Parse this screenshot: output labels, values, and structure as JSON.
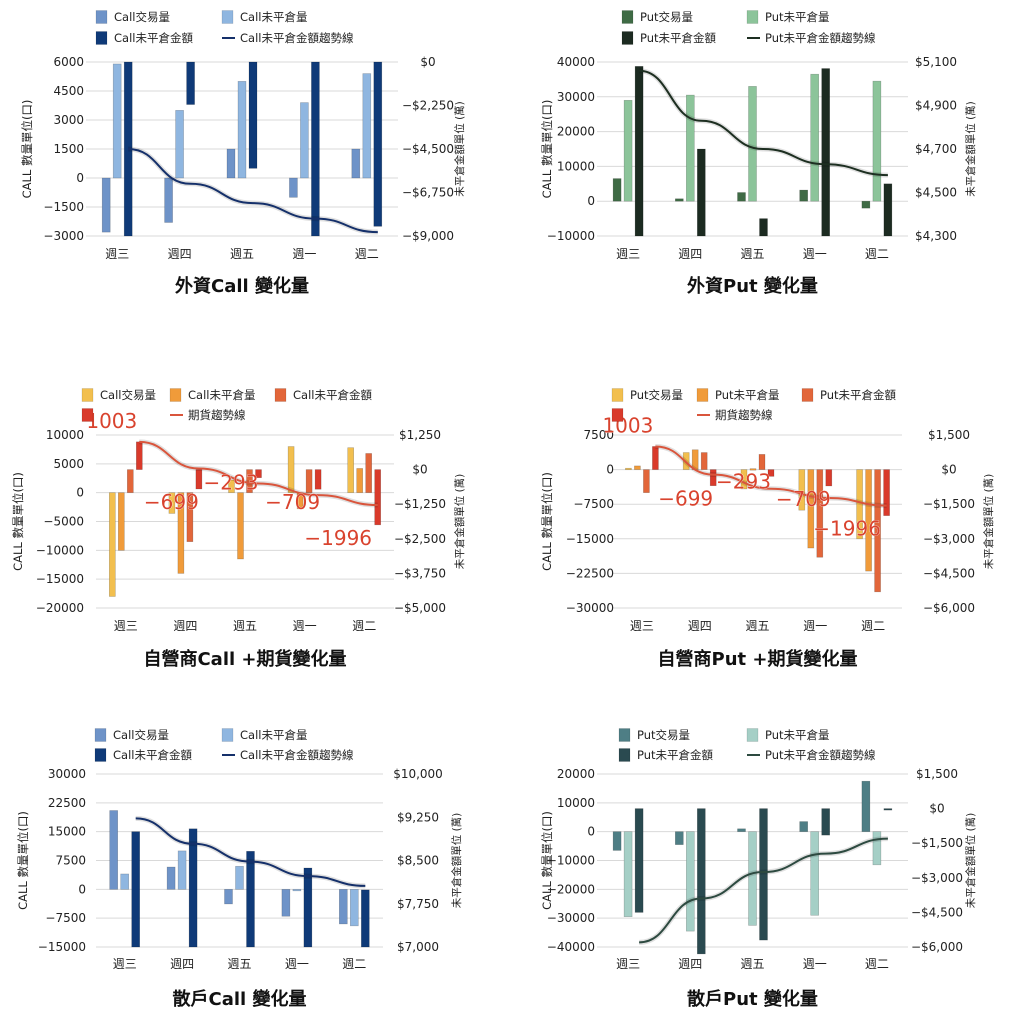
{
  "chart_data": [
    {
      "type": "bar",
      "title": "外資Call 變化量",
      "categories": [
        "週三",
        "週四",
        "週五",
        "週一",
        "週二"
      ],
      "ylabel": "CALL 數量單位(口)",
      "y2label": "未平倉金額單位 (萬)",
      "ylim": [
        -3000,
        6000
      ],
      "yticks": [
        6000,
        4500,
        3000,
        1500,
        0,
        -1500,
        -3000
      ],
      "ytick_labels": [
        "6000",
        "4500",
        "3000",
        "1500",
        "0",
        "−1500",
        "−3000"
      ],
      "y2lim": [
        -9000,
        0
      ],
      "y2ticks": [
        0,
        -2250,
        -4500,
        -6750,
        -9000
      ],
      "y2tick_labels": [
        "$0",
        "−$2,250",
        "−$4,500",
        "−$6,750",
        "−$9,000"
      ],
      "legend": [
        "Call交易量",
        "Call未平倉量",
        "Call未平倉金額",
        "Call未平倉金額趨勢線"
      ],
      "grid": true,
      "series": [
        {
          "name": "Call交易量",
          "color": "#6e93c8",
          "values": [
            -2800,
            -2300,
            1500,
            -1000,
            1500
          ]
        },
        {
          "name": "Call未平倉量",
          "color": "#8fb6e0",
          "values": [
            5900,
            3500,
            5000,
            3900,
            5400
          ]
        },
        {
          "name": "Call未平倉金額",
          "color": "#0f3a78",
          "axis": "right",
          "values": [
            -9000,
            -2200,
            -5500,
            -9000,
            -8500
          ]
        }
      ],
      "trend": {
        "name": "Call未平倉金額趨勢線",
        "color": "#15306a",
        "values": [
          -4500,
          -6300,
          -7300,
          -8100,
          -8800
        ]
      }
    },
    {
      "type": "bar",
      "title": "外資Put 變化量",
      "categories": [
        "週三",
        "週四",
        "週五",
        "週一",
        "週二"
      ],
      "ylabel": "CALL 數量單位(口)",
      "y2label": "未平倉金額單位 (萬)",
      "ylim": [
        -10000,
        40000
      ],
      "yticks": [
        40000,
        30000,
        20000,
        10000,
        0,
        -10000
      ],
      "ytick_labels": [
        "40000",
        "30000",
        "20000",
        "10000",
        "0",
        "−10000"
      ],
      "y2lim": [
        4300,
        5100
      ],
      "y2ticks": [
        5100,
        4900,
        4700,
        4500,
        4300
      ],
      "y2tick_labels": [
        "$5,100",
        "$4,900",
        "$4,700",
        "$4,500",
        "$4,300"
      ],
      "legend": [
        "Put交易量",
        "Put未平倉量",
        "Put未平倉金額",
        "Put未平倉金額趨勢線"
      ],
      "grid": true,
      "series": [
        {
          "name": "Put交易量",
          "color": "#3f6b45",
          "values": [
            6500,
            700,
            2500,
            3200,
            -2000
          ]
        },
        {
          "name": "Put未平倉量",
          "color": "#8cc49a",
          "values": [
            29000,
            30500,
            33000,
            36500,
            34500
          ]
        },
        {
          "name": "Put未平倉金額",
          "color": "#1c2b21",
          "axis": "right",
          "values": [
            5080,
            4700,
            4380,
            5070,
            4540
          ]
        }
      ],
      "trend": {
        "name": "Put未平倉金額趨勢線",
        "color": "#1d2f21",
        "values": [
          5060,
          4830,
          4700,
          4630,
          4580
        ]
      }
    },
    {
      "type": "bar",
      "title": "自營商Call +期貨變化量",
      "categories": [
        "週三",
        "週四",
        "週五",
        "週一",
        "週二"
      ],
      "ylabel": "CALL 數量單位(口)",
      "y2label": "未平倉金額單位 (萬)",
      "ylim": [
        -20000,
        10000
      ],
      "yticks": [
        10000,
        5000,
        0,
        -5000,
        -10000,
        -15000,
        -20000
      ],
      "ytick_labels": [
        "10000",
        "5000",
        "0",
        "−5000",
        "−10000",
        "−15000",
        "−20000"
      ],
      "y2lim": [
        -5000,
        1250
      ],
      "y2ticks": [
        1250,
        0,
        -1250,
        -2500,
        -3750,
        -5000
      ],
      "y2tick_labels": [
        "$1,250",
        "$0",
        "−$1,250",
        "−$2,500",
        "−$3,750",
        "−$5,000"
      ],
      "legend": [
        "Call交易量",
        "Call未平倉量",
        "Call未平倉金額",
        "",
        "期貨趨勢線"
      ],
      "grid": true,
      "series": [
        {
          "name": "Call交易量",
          "color": "#f2bf4e",
          "values": [
            -18000,
            -3600,
            2200,
            8000,
            7800
          ]
        },
        {
          "name": "Call未平倉量",
          "color": "#f09b3a",
          "values": [
            -10000,
            -14000,
            -11500,
            -2800,
            4200
          ]
        },
        {
          "name": "Call未平倉金額",
          "color": "#e2663a",
          "values": [
            4000,
            -8500,
            4000,
            4000,
            6800
          ]
        },
        {
          "name": "",
          "color": "#d93a2b",
          "axis": "right",
          "values": [
            1003,
            -699,
            -293,
            -709,
            -1996
          ]
        }
      ],
      "trend": {
        "name": "期貨趨勢線",
        "color": "#d9553c",
        "values": [
          1000,
          40,
          -500,
          -920,
          -1280
        ]
      },
      "annotations": [
        "1003",
        "−699",
        "−293",
        "−709",
        "−1996"
      ]
    },
    {
      "type": "bar",
      "title": "自營商Put +期貨變化量",
      "categories": [
        "週三",
        "週四",
        "週五",
        "週一",
        "週二"
      ],
      "ylabel": "CALL 數量單位(口)",
      "y2label": "未平倉金額單位 (萬)",
      "ylim": [
        -30000,
        7500
      ],
      "yticks": [
        7500,
        0,
        -7500,
        -15000,
        -22500,
        -30000
      ],
      "ytick_labels": [
        "7500",
        "0",
        "−7500",
        "−15000",
        "−22500",
        "−30000"
      ],
      "y2lim": [
        -6000,
        1500
      ],
      "y2ticks": [
        1500,
        0,
        -1500,
        -3000,
        -4500,
        -6000
      ],
      "y2tick_labels": [
        "$1,500",
        "$0",
        "−$1,500",
        "−$3,000",
        "−$4,500",
        "−$6,000"
      ],
      "legend": [
        "Put交易量",
        "Put未平倉量",
        "Put未平倉金額",
        "",
        "期貨趨勢線"
      ],
      "grid": true,
      "series": [
        {
          "name": "Put交易量",
          "color": "#f2bf4e",
          "values": [
            300,
            3700,
            -4200,
            -8800,
            -15000
          ]
        },
        {
          "name": "Put未平倉量",
          "color": "#f09b3a",
          "values": [
            800,
            4300,
            200,
            -17000,
            -22000
          ]
        },
        {
          "name": "Put未平倉金額",
          "color": "#e2663a",
          "values": [
            -5000,
            3700,
            3300,
            -19000,
            -26500
          ]
        },
        {
          "name": "",
          "color": "#d93a2b",
          "axis": "right",
          "values": [
            1003,
            -699,
            -293,
            -709,
            -1996
          ]
        }
      ],
      "trend": {
        "name": "期貨趨勢線",
        "color": "#d9553c",
        "values": [
          1000,
          -220,
          -830,
          -1230,
          -1560
        ]
      },
      "annotations": [
        "1003",
        "−699",
        "−293",
        "−709",
        "−1996"
      ]
    },
    {
      "type": "bar",
      "title": "散戶Call 變化量",
      "categories": [
        "週三",
        "週四",
        "週五",
        "週一",
        "週二"
      ],
      "ylabel": "CALL 數量單位(口)",
      "y2label": "未平倉金額單位 (萬)",
      "ylim": [
        -15000,
        30000
      ],
      "yticks": [
        30000,
        22500,
        15000,
        7500,
        0,
        -7500,
        -15000
      ],
      "ytick_labels": [
        "30000",
        "22500",
        "15000",
        "7500",
        "0",
        "−7500",
        "−15000"
      ],
      "y2lim": [
        7000,
        10000
      ],
      "y2ticks": [
        10000,
        9250,
        8500,
        7750,
        7000
      ],
      "y2tick_labels": [
        "$10,000",
        "$9,250",
        "$8,500",
        "$7,750",
        "$7,000"
      ],
      "legend": [
        "Call交易量",
        "Call未平倉量",
        "Call未平倉金額",
        "Call未平倉金額趨勢線"
      ],
      "grid": true,
      "series": [
        {
          "name": "Call交易量",
          "color": "#6e93c8",
          "values": [
            20500,
            5800,
            -3800,
            -7000,
            -9000
          ]
        },
        {
          "name": "Call未平倉量",
          "color": "#8fb6e0",
          "values": [
            4000,
            10000,
            6000,
            -300,
            -9500
          ]
        },
        {
          "name": "Call未平倉金額",
          "color": "#0f3a78",
          "axis": "right",
          "values": [
            9000,
            9050,
            8660,
            8370,
            7990
          ]
        }
      ],
      "trend": {
        "name": "Call未平倉金額趨勢線",
        "color": "#15306a",
        "values": [
          9230,
          8790,
          8480,
          8230,
          8060
        ]
      }
    },
    {
      "type": "bar",
      "title": "散戶Put 變化量",
      "categories": [
        "週三",
        "週四",
        "週五",
        "週一",
        "週二"
      ],
      "ylabel": "CALL 數量單位(口)",
      "y2label": "未平倉金額單位 (萬)",
      "ylim": [
        -40000,
        20000
      ],
      "yticks": [
        20000,
        10000,
        0,
        -10000,
        -20000,
        -30000,
        -40000
      ],
      "ytick_labels": [
        "20000",
        "10000",
        "0",
        "−10000",
        "−20000",
        "−30000",
        "−40000"
      ],
      "y2lim": [
        -6000,
        1500
      ],
      "y2ticks": [
        1500,
        0,
        -1500,
        -3000,
        -4500,
        -6000
      ],
      "y2tick_labels": [
        "$1,500",
        "$0",
        "−$1,500",
        "−$3,000",
        "−$4,500",
        "−$6,000"
      ],
      "legend": [
        "Put交易量",
        "Put未平倉量",
        "Put未平倉金額",
        "Put未平倉金額趨勢線"
      ],
      "grid": true,
      "series": [
        {
          "name": "Put交易量",
          "color": "#4e7e85",
          "values": [
            -6500,
            -4500,
            1000,
            3500,
            17500
          ]
        },
        {
          "name": "Put未平倉量",
          "color": "#a5cfc6",
          "values": [
            -29500,
            -34500,
            -32500,
            -29000,
            -11500
          ]
        },
        {
          "name": "Put未平倉金額",
          "color": "#2a4a50",
          "axis": "right",
          "values": [
            -4500,
            -6300,
            -5700,
            -1150,
            0
          ]
        }
      ],
      "trend": {
        "name": "Put未平倉金額趨勢線",
        "color": "#2d4a40",
        "values": [
          -5800,
          -3900,
          -2750,
          -1950,
          -1300
        ]
      }
    }
  ]
}
